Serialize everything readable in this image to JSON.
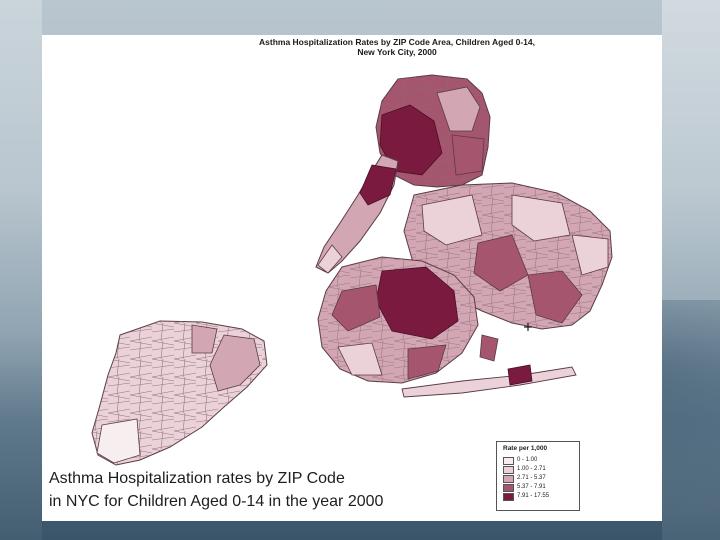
{
  "slide": {
    "map_title": "Asthma Hospitalization Rates by ZIP Code Area, Children Aged 0-14,\nNew York City, 2000",
    "caption_line1": "Asthma Hospitalization rates by ZIP Code",
    "caption_line2": "in NYC for Children Aged 0-14 in the year 2000"
  },
  "legend": {
    "title": "Rate per 1,000",
    "items": [
      {
        "label": "0 - 1.00",
        "color": "#f7eef0"
      },
      {
        "label": "1.00 - 2.71",
        "color": "#ead2d8"
      },
      {
        "label": "2.71 - 5.37",
        "color": "#d3a6b3"
      },
      {
        "label": "5.37 - 7.91",
        "color": "#a6556f"
      },
      {
        "label": "7.91 - 17.55",
        "color": "#7a1a3f"
      }
    ]
  }
}
